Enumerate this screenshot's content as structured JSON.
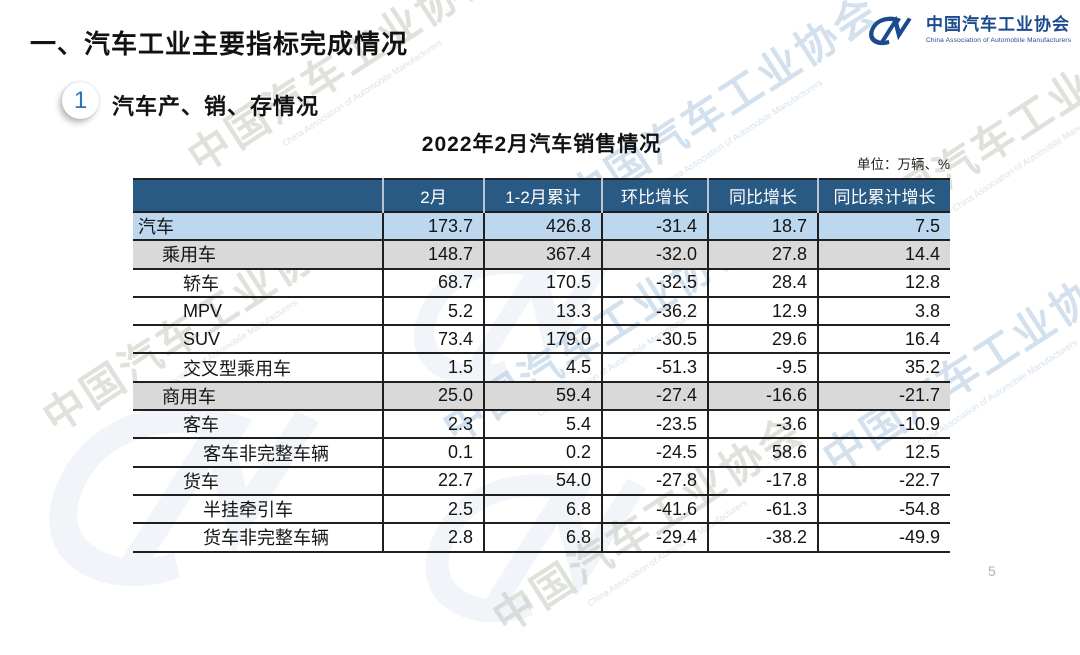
{
  "slide": {
    "section_title": "一、汽车工业主要指标完成情况",
    "badge_number": "1",
    "subsection_title": "汽车产、销、存情况",
    "page_number": "5"
  },
  "logo": {
    "name_cn": "中国汽车工业协会",
    "name_en": "China Association of Automobile Manufacturers"
  },
  "watermark": {
    "cn": "中国汽车工业协会",
    "en": "China Association of Automobile Manufacturers"
  },
  "table": {
    "title": "2022年2月汽车销售情况",
    "unit_note": "单位：万辆、%",
    "columns": [
      "",
      "2月",
      "1-2月累计",
      "环比增长",
      "同比增长",
      "同比累计增长"
    ],
    "rows": [
      {
        "label": "汽车",
        "indent": 0,
        "highlight": "blue",
        "values": [
          "173.7",
          "426.8",
          "-31.4",
          "18.7",
          "7.5"
        ]
      },
      {
        "label": "乘用车",
        "indent": 1,
        "highlight": "gray",
        "values": [
          "148.7",
          "367.4",
          "-32.0",
          "27.8",
          "14.4"
        ]
      },
      {
        "label": "轿车",
        "indent": 2,
        "highlight": "none",
        "values": [
          "68.7",
          "170.5",
          "-32.5",
          "28.4",
          "12.8"
        ]
      },
      {
        "label": "MPV",
        "indent": 2,
        "highlight": "none",
        "values": [
          "5.2",
          "13.3",
          "-36.2",
          "12.9",
          "3.8"
        ]
      },
      {
        "label": "SUV",
        "indent": 2,
        "highlight": "none",
        "values": [
          "73.4",
          "179.0",
          "-30.5",
          "29.6",
          "16.4"
        ]
      },
      {
        "label": "交叉型乘用车",
        "indent": 2,
        "highlight": "none",
        "values": [
          "1.5",
          "4.5",
          "-51.3",
          "-9.5",
          "35.2"
        ]
      },
      {
        "label": "商用车",
        "indent": 1,
        "highlight": "gray",
        "values": [
          "25.0",
          "59.4",
          "-27.4",
          "-16.6",
          "-21.7"
        ]
      },
      {
        "label": "客车",
        "indent": 2,
        "highlight": "none",
        "values": [
          "2.3",
          "5.4",
          "-23.5",
          "-3.6",
          "-10.9"
        ]
      },
      {
        "label": "客车非完整车辆",
        "indent": 3,
        "highlight": "none",
        "values": [
          "0.1",
          "0.2",
          "-24.5",
          "58.6",
          "12.5"
        ]
      },
      {
        "label": "货车",
        "indent": 2,
        "highlight": "none",
        "values": [
          "22.7",
          "54.0",
          "-27.8",
          "-17.8",
          "-22.7"
        ]
      },
      {
        "label": "半挂牵引车",
        "indent": 3,
        "highlight": "none",
        "values": [
          "2.5",
          "6.8",
          "-41.6",
          "-61.3",
          "-54.8"
        ]
      },
      {
        "label": "货车非完整车辆",
        "indent": 3,
        "highlight": "none",
        "values": [
          "2.8",
          "6.8",
          "-29.4",
          "-38.2",
          "-49.9"
        ]
      }
    ]
  },
  "colors": {
    "header_bg": "#295a84",
    "row_highlight_blue": "#bdd7ee",
    "row_highlight_gray": "#d9d9d9",
    "brand_blue": "#1a4b8c"
  }
}
